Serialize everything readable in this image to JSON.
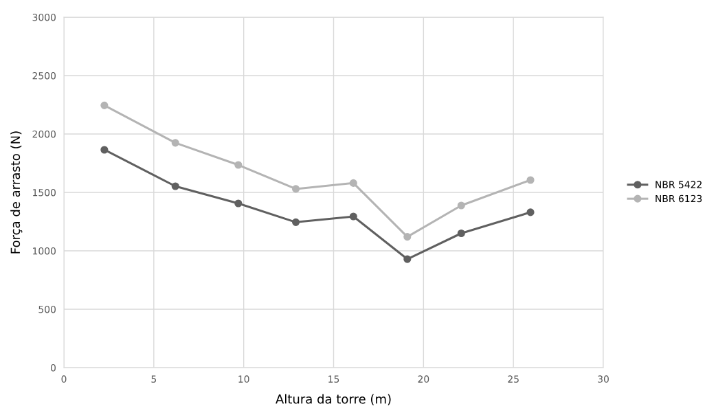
{
  "chart_data": {
    "type": "line",
    "xlabel": "Altura da torre (m)",
    "ylabel": "Força de arrasto (N)",
    "series": [
      {
        "name": "NBR 5422",
        "color": "#606060",
        "x": [
          2.25,
          6.2,
          9.7,
          12.9,
          16.1,
          19.1,
          22.1,
          25.95
        ],
        "values": [
          1865,
          1553,
          1406,
          1245,
          1294,
          929,
          1150,
          1330
        ]
      },
      {
        "name": "NBR 6123",
        "color": "#b4b4b4",
        "x": [
          2.25,
          6.2,
          9.7,
          12.9,
          16.1,
          19.1,
          22.1,
          25.95
        ],
        "values": [
          2245,
          1924,
          1735,
          1530,
          1580,
          1120,
          1388,
          1606
        ]
      }
    ],
    "xlim": [
      0,
      30
    ],
    "xticks": [
      0,
      5,
      10,
      15,
      20,
      25,
      30
    ],
    "ylim": [
      0,
      3000
    ],
    "yticks": [
      0,
      500,
      1000,
      1500,
      2000,
      2500,
      3000
    ],
    "grid": true,
    "legend": "right",
    "marker": "circle",
    "line_style": "solid"
  }
}
